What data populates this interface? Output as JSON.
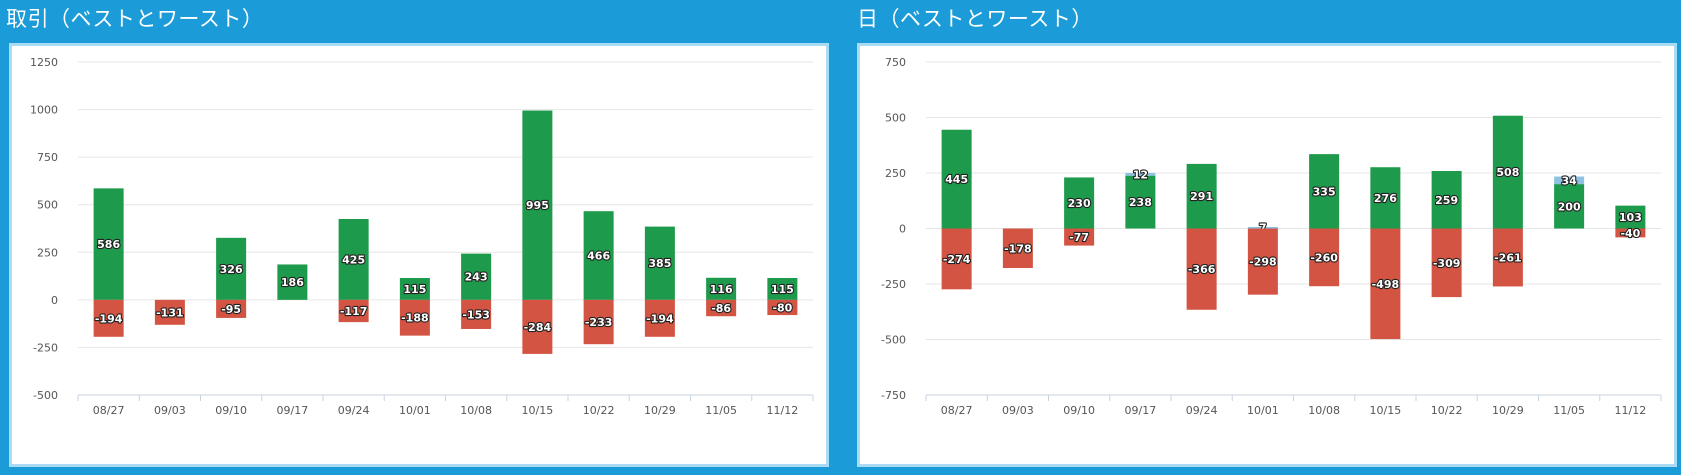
{
  "chart_data": [
    {
      "type": "bar",
      "title": "取引（ベストとワースト）",
      "categories": [
        "08/27",
        "09/03",
        "09/10",
        "09/17",
        "09/24",
        "10/01",
        "10/08",
        "10/15",
        "10/22",
        "10/29",
        "11/05",
        "11/12"
      ],
      "yticks": [
        1250,
        1000,
        750,
        500,
        250,
        0,
        -250,
        -500
      ],
      "ylim": [
        -500,
        1250
      ],
      "series": [
        {
          "values": [
            586,
            null,
            326,
            186,
            425,
            115,
            243,
            995,
            466,
            385,
            116,
            115
          ],
          "color": "#1e9a4c"
        },
        {
          "values": [
            -194,
            -131,
            -95,
            null,
            -117,
            -188,
            -153,
            -284,
            -233,
            -194,
            -86,
            -80
          ],
          "color": "#d35442"
        }
      ]
    },
    {
      "type": "bar",
      "title": "日（ベストとワースト）",
      "categories": [
        "08/27",
        "09/03",
        "09/10",
        "09/17",
        "09/24",
        "10/01",
        "10/08",
        "10/15",
        "10/22",
        "10/29",
        "11/05",
        "11/12"
      ],
      "yticks": [
        750,
        500,
        250,
        0,
        -250,
        -500,
        -750
      ],
      "ylim": [
        -750,
        750
      ],
      "series": [
        {
          "values": [
            445,
            null,
            230,
            238,
            291,
            null,
            335,
            276,
            259,
            508,
            200,
            103
          ],
          "color": "#1e9a4c"
        },
        {
          "values": [
            null,
            null,
            null,
            12,
            null,
            7,
            null,
            null,
            null,
            null,
            34,
            null
          ],
          "color": "#8fc1e3"
        },
        {
          "values": [
            -274,
            -178,
            -77,
            null,
            -366,
            -298,
            -260,
            -498,
            -309,
            -261,
            null,
            -40
          ],
          "color": "#d35442"
        }
      ]
    }
  ]
}
